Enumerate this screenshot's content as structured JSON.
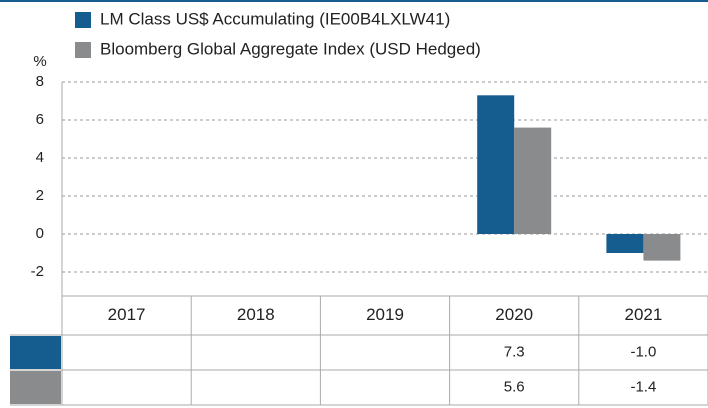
{
  "chart_data": {
    "type": "bar",
    "y_label": "%",
    "categories": [
      "2017",
      "2018",
      "2019",
      "2020",
      "2021"
    ],
    "series": [
      {
        "name": "LM Class US$ Accumulating (IE00B4LXLW41)",
        "color": "#155d8e",
        "values": [
          null,
          null,
          null,
          7.3,
          -1.0
        ],
        "value_labels": [
          null,
          null,
          null,
          "7.3",
          "-1.0"
        ]
      },
      {
        "name": "Bloomberg Global Aggregate Index (USD Hedged)",
        "color": "#8a8b8d",
        "values": [
          null,
          null,
          null,
          5.6,
          -1.4
        ],
        "value_labels": [
          null,
          null,
          null,
          "5.6",
          "-1.4"
        ]
      }
    ],
    "ylim": [
      -2,
      8
    ],
    "yticks": [
      -2,
      0,
      2,
      4,
      6,
      8
    ],
    "grid": true
  }
}
